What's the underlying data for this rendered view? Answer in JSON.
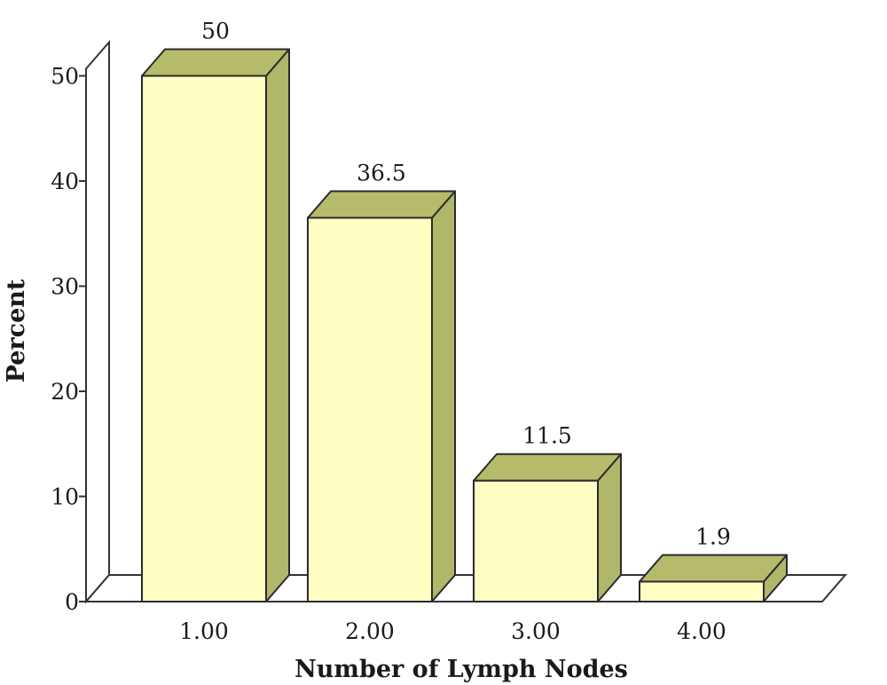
{
  "chart_data": {
    "type": "bar",
    "title": "",
    "xlabel": "Number of Lymph Nodes",
    "ylabel": "Percent",
    "categories": [
      "1.00",
      "2.00",
      "3.00",
      "4.00"
    ],
    "values": [
      50,
      36.5,
      11.5,
      1.9
    ],
    "data_labels": [
      "50",
      "36.5",
      "11.5",
      "1.9"
    ],
    "yticks": [
      "0",
      "10",
      "20",
      "30",
      "40",
      "50"
    ],
    "ylim": [
      0,
      50
    ],
    "grid": false,
    "legend": "none",
    "style": "3d",
    "colors": {
      "bar_front": "#ffffc4",
      "bar_side": "#b0b66a",
      "bar_top": "#b6bb6c",
      "outline": "#2a2a2a",
      "frame": "#333333",
      "background": "#ffffff"
    }
  }
}
